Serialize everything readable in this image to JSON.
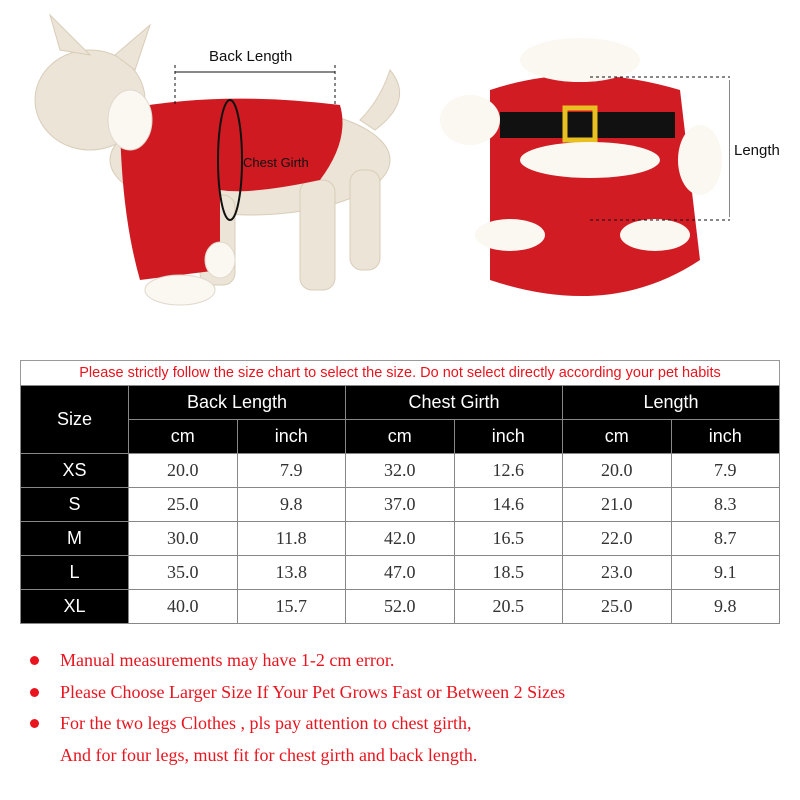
{
  "images": {
    "dog_labels": {
      "back_length": "Back Length",
      "chest_girth": "Chest Girth"
    },
    "costume_labels": {
      "length": "Length"
    }
  },
  "notice": "Please strictly follow the size chart to select the size. Do not select directly according your pet habits",
  "table": {
    "size_header": "Size",
    "groups": [
      "Back Length",
      "Chest Girth",
      "Length"
    ],
    "units": [
      "cm",
      "inch",
      "cm",
      "inch",
      "cm",
      "inch"
    ],
    "rows": [
      {
        "size": "XS",
        "values": [
          "20.0",
          "7.9",
          "32.0",
          "12.6",
          "20.0",
          "7.9"
        ]
      },
      {
        "size": "S",
        "values": [
          "25.0",
          "9.8",
          "37.0",
          "14.6",
          "21.0",
          "8.3"
        ]
      },
      {
        "size": "M",
        "values": [
          "30.0",
          "11.8",
          "42.0",
          "16.5",
          "22.0",
          "8.7"
        ]
      },
      {
        "size": "L",
        "values": [
          "35.0",
          "13.8",
          "47.0",
          "18.5",
          "23.0",
          "9.1"
        ]
      },
      {
        "size": "XL",
        "values": [
          "40.0",
          "15.7",
          "52.0",
          "20.5",
          "25.0",
          "9.8"
        ]
      }
    ]
  },
  "notes": [
    "Manual measurements may have 1-2 cm error.",
    "Please Choose Larger Size If Your Pet Grows Fast or Between 2 Sizes",
    "For the two legs Clothes , pls pay attention to chest girth,",
    "And for four legs, must fit for chest girth and back length."
  ],
  "colors": {
    "accent_red": "#e8141e",
    "header_black": "#000000"
  }
}
